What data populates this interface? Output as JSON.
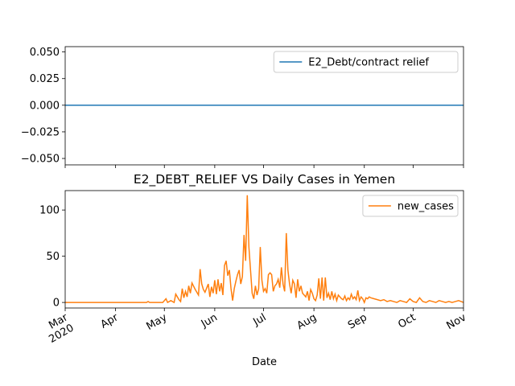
{
  "chart_data": [
    {
      "type": "line",
      "x": [
        0,
        245
      ],
      "series": [
        {
          "name": "E2_Debt/contract relief",
          "color": "#1f77b4",
          "values": [
            0,
            0
          ]
        }
      ],
      "xlim": [
        0,
        245
      ],
      "ylim": [
        -0.056,
        0.055
      ],
      "yticks": [
        {
          "value": -0.05,
          "label": "−0.050"
        },
        {
          "value": -0.025,
          "label": "−0.025"
        },
        {
          "value": 0,
          "label": "0.000"
        },
        {
          "value": 0.025,
          "label": "0.025"
        },
        {
          "value": 0.05,
          "label": "0.050"
        }
      ],
      "legend": "upper right"
    },
    {
      "type": "line",
      "title": "E2_DEBT_RELIEF VS Daily Cases in Yemen",
      "xlabel": "Date",
      "x": [
        0,
        40,
        50,
        51,
        52,
        60,
        62,
        63,
        65,
        67,
        68,
        70,
        71,
        72,
        73,
        74,
        75,
        76,
        77,
        78,
        80,
        82,
        83,
        84,
        85,
        86,
        88,
        89,
        90,
        91,
        92,
        93,
        94,
        95,
        96,
        97,
        98,
        99,
        100,
        101,
        102,
        103,
        104,
        105,
        106,
        107,
        108,
        109,
        110,
        111,
        112,
        113,
        114,
        115,
        116,
        117,
        118,
        119,
        120,
        121,
        122,
        123,
        124,
        125,
        126,
        127,
        128,
        129,
        130,
        131,
        132,
        133,
        134,
        135,
        136,
        137,
        138,
        139,
        140,
        141,
        142,
        143,
        144,
        145,
        146,
        147,
        148,
        149,
        150,
        151,
        152,
        153,
        154,
        155,
        156,
        157,
        158,
        159,
        160,
        161,
        162,
        163,
        164,
        165,
        166,
        167,
        168,
        169,
        170,
        171,
        172,
        173,
        174,
        175,
        176,
        177,
        178,
        179,
        180,
        181,
        182,
        183,
        184,
        185,
        186,
        187,
        188,
        190,
        192,
        194,
        196,
        198,
        200,
        202,
        204,
        206,
        208,
        210,
        212,
        214,
        216,
        218,
        220,
        222,
        224,
        226,
        228,
        230,
        232,
        234,
        236,
        238,
        240,
        242,
        245
      ],
      "series": [
        {
          "name": "new_cases",
          "color": "#ff7f0e",
          "values": [
            0,
            0,
            0,
            1,
            0,
            0,
            4,
            0,
            2,
            0,
            9,
            3,
            1,
            15,
            5,
            12,
            6,
            18,
            10,
            21,
            14,
            8,
            36,
            20,
            14,
            11,
            20,
            6,
            17,
            10,
            24,
            9,
            25,
            12,
            21,
            8,
            40,
            45,
            29,
            35,
            15,
            2,
            15,
            23,
            30,
            35,
            20,
            28,
            73,
            45,
            116,
            60,
            35,
            10,
            4,
            18,
            8,
            15,
            60,
            24,
            12,
            15,
            10,
            30,
            32,
            30,
            12,
            18,
            20,
            25,
            16,
            38,
            20,
            12,
            75,
            35,
            20,
            10,
            24,
            20,
            5,
            25,
            12,
            18,
            10,
            8,
            6,
            12,
            2,
            14,
            10,
            4,
            2,
            8,
            26,
            4,
            27,
            2,
            27,
            5,
            10,
            3,
            12,
            4,
            9,
            2,
            8,
            6,
            4,
            3,
            7,
            2,
            5,
            3,
            9,
            4,
            6,
            3,
            13,
            2,
            6,
            4,
            0,
            5,
            4,
            6,
            5,
            4,
            3,
            2,
            3,
            1,
            2,
            1,
            0,
            2,
            1,
            0,
            4,
            1,
            0,
            5,
            1,
            0,
            2,
            1,
            0,
            2,
            1,
            0,
            1,
            0,
            1,
            2,
            0
          ]
        }
      ],
      "xlim": [
        0,
        245
      ],
      "ylim": [
        -6,
        121
      ],
      "yticks": [
        0,
        50,
        100
      ],
      "xticks": [
        {
          "value": 0,
          "label": "Mar\n2020"
        },
        {
          "value": 31,
          "label": "Apr"
        },
        {
          "value": 61,
          "label": "May"
        },
        {
          "value": 92,
          "label": "Jun"
        },
        {
          "value": 122,
          "label": "Jul"
        },
        {
          "value": 153,
          "label": "Aug"
        },
        {
          "value": 184,
          "label": "Sep"
        },
        {
          "value": 214,
          "label": "Oct"
        },
        {
          "value": 245,
          "label": "Nov"
        }
      ],
      "legend": "upper right"
    }
  ]
}
